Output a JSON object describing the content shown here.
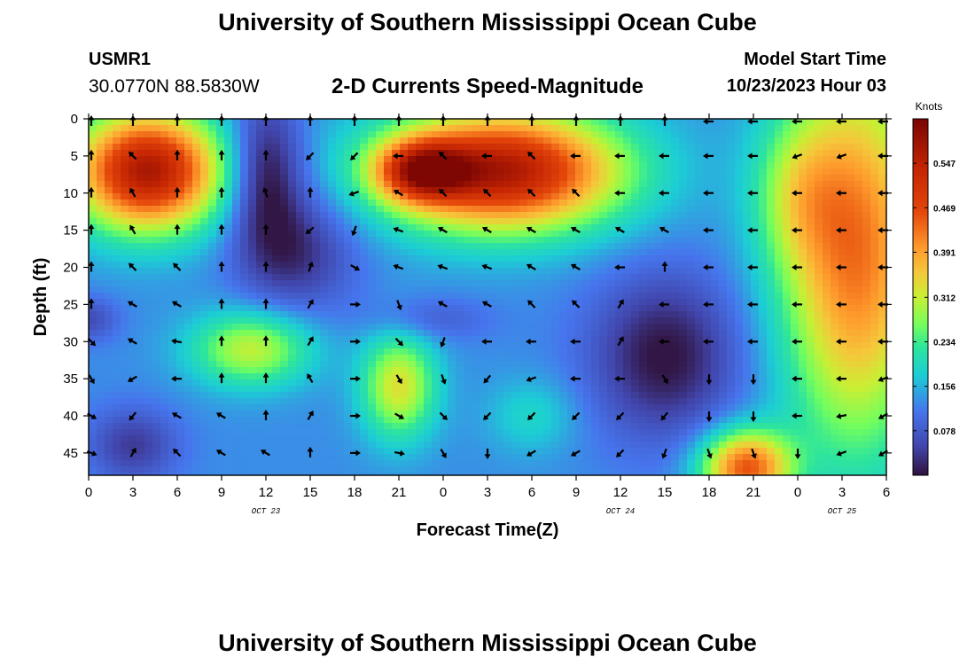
{
  "page": {
    "title": "University of Southern Mississippi Ocean Cube",
    "station": "USMR1",
    "coordinates": "30.0770N  88.5830W",
    "subtitle": "2-D Currents Speed-Magnitude",
    "model_start_label": "Model Start Time",
    "model_start_value": "10/23/2023 Hour 03",
    "bottom_title": "University of Southern Mississippi Ocean Cube"
  },
  "chart_data": {
    "type": "heatmap",
    "xlabel": "Forecast Time(Z)",
    "ylabel": "Depth (ft)",
    "x_tick_labels": [
      "0",
      "3",
      "6",
      "9",
      "12",
      "15",
      "18",
      "21",
      "0",
      "3",
      "6",
      "9",
      "12",
      "15",
      "18",
      "21",
      "0",
      "3",
      "6"
    ],
    "x_range_hours": [
      0,
      54
    ],
    "day_labels": [
      {
        "text": "OCT 23",
        "hour": 12
      },
      {
        "text": "OCT 24",
        "hour": 36
      },
      {
        "text": "OCT 25",
        "hour": 51
      }
    ],
    "y_ticks": [
      0,
      5,
      10,
      15,
      20,
      25,
      30,
      35,
      40,
      45
    ],
    "ylim": [
      0,
      48
    ],
    "colorbar": {
      "unit": "Knots",
      "tick_values": [
        0.547,
        0.469,
        0.391,
        0.312,
        0.234,
        0.156,
        0.078
      ],
      "range": [
        0,
        0.625
      ]
    },
    "arrow_x_hours": [
      0,
      3,
      6,
      9,
      12,
      15,
      18,
      21,
      24,
      27,
      30,
      33,
      36,
      39,
      42,
      45,
      48,
      51,
      54
    ],
    "arrow_depths": [
      0,
      5,
      10,
      15,
      20,
      25,
      30,
      35,
      40,
      45
    ],
    "arrow_directions_deg": [
      [
        0,
        0,
        0,
        0,
        0,
        0,
        0,
        0,
        0,
        0,
        0,
        0,
        0,
        0,
        270,
        270,
        270,
        270,
        270
      ],
      [
        0,
        315,
        0,
        0,
        0,
        225,
        225,
        270,
        315,
        270,
        315,
        270,
        270,
        270,
        270,
        270,
        250,
        250,
        270
      ],
      [
        0,
        330,
        0,
        0,
        340,
        0,
        250,
        300,
        315,
        315,
        315,
        315,
        270,
        270,
        270,
        270,
        270,
        270,
        270
      ],
      [
        0,
        330,
        0,
        0,
        0,
        230,
        200,
        290,
        300,
        300,
        300,
        300,
        300,
        300,
        270,
        270,
        270,
        270,
        270
      ],
      [
        0,
        315,
        315,
        0,
        0,
        20,
        120,
        290,
        290,
        290,
        300,
        300,
        270,
        0,
        270,
        270,
        270,
        270,
        270
      ],
      [
        0,
        300,
        300,
        0,
        0,
        30,
        90,
        160,
        300,
        300,
        315,
        315,
        30,
        270,
        270,
        270,
        270,
        270,
        270
      ],
      [
        135,
        300,
        280,
        0,
        0,
        30,
        90,
        135,
        200,
        270,
        270,
        270,
        30,
        270,
        270,
        270,
        270,
        270,
        270
      ],
      [
        150,
        240,
        270,
        0,
        0,
        330,
        90,
        150,
        160,
        220,
        250,
        270,
        270,
        150,
        180,
        180,
        270,
        270,
        250
      ],
      [
        120,
        220,
        300,
        300,
        0,
        30,
        90,
        120,
        135,
        225,
        225,
        225,
        225,
        220,
        180,
        180,
        270,
        260,
        240
      ],
      [
        110,
        30,
        315,
        300,
        300,
        0,
        90,
        100,
        150,
        180,
        240,
        240,
        225,
        200,
        160,
        160,
        180,
        250,
        240
      ]
    ]
  }
}
